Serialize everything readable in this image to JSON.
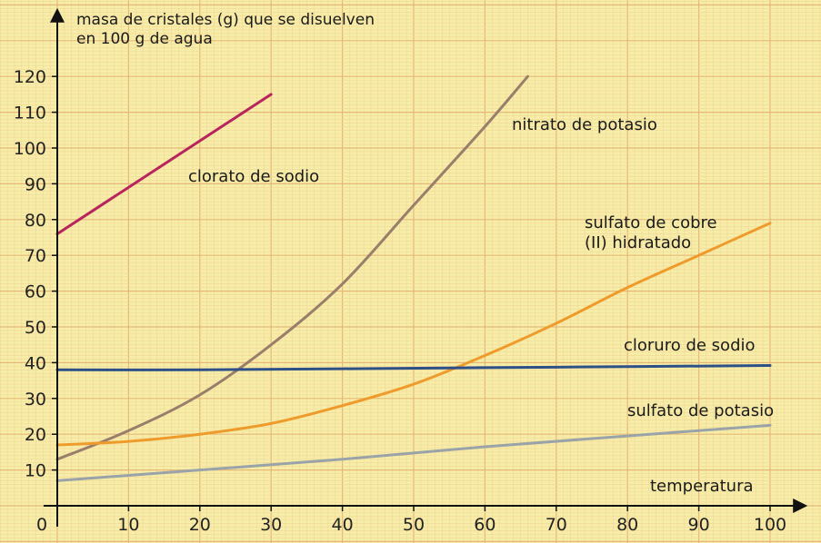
{
  "chart_data": {
    "type": "line",
    "ylabel_lines": [
      "masa de cristales (g) que se disuelven",
      "en 100 g de agua"
    ],
    "xlabel": "temperatura",
    "origin_label": "0",
    "xlim": [
      0,
      100
    ],
    "ylim": [
      0,
      125
    ],
    "x_ticks": [
      10,
      20,
      30,
      40,
      50,
      60,
      70,
      80,
      90,
      100
    ],
    "y_ticks": [
      10,
      20,
      30,
      40,
      50,
      60,
      70,
      80,
      90,
      100,
      110,
      120
    ],
    "grid": true,
    "series": [
      {
        "name": "clorato de sodio",
        "color": "#b8245e",
        "label_lines": [
          "clorato de sodio"
        ],
        "x": [
          0,
          10,
          20,
          30
        ],
        "y": [
          76,
          89,
          102,
          115
        ]
      },
      {
        "name": "nitrato de potasio",
        "color": "#9a7e6c",
        "label_lines": [
          "nitrato de potasio"
        ],
        "x": [
          0,
          10,
          20,
          30,
          40,
          50,
          60,
          66
        ],
        "y": [
          13,
          21,
          31,
          45,
          62,
          84,
          106,
          120
        ]
      },
      {
        "name": "sulfato de cobre (II) hidratado",
        "color": "#ee9b2c",
        "label_lines": [
          "sulfato de cobre",
          "(II) hidratado"
        ],
        "x": [
          0,
          10,
          20,
          30,
          40,
          50,
          60,
          70,
          80,
          90,
          100
        ],
        "y": [
          17,
          18,
          20,
          23,
          28,
          34,
          42,
          51,
          61,
          70,
          79
        ]
      },
      {
        "name": "cloruro de sodio",
        "color": "#2e5089",
        "label_lines": [
          "cloruro de sodio"
        ],
        "x": [
          0,
          20,
          40,
          60,
          80,
          100
        ],
        "y": [
          38,
          38,
          38.3,
          38.6,
          38.9,
          39.2
        ]
      },
      {
        "name": "sulfato de potasio",
        "color": "#9aa3a8",
        "label_lines": [
          "sulfato de potasio"
        ],
        "x": [
          0,
          20,
          40,
          60,
          80,
          100
        ],
        "y": [
          7,
          10,
          13,
          16.5,
          19.5,
          22.5
        ]
      }
    ]
  }
}
